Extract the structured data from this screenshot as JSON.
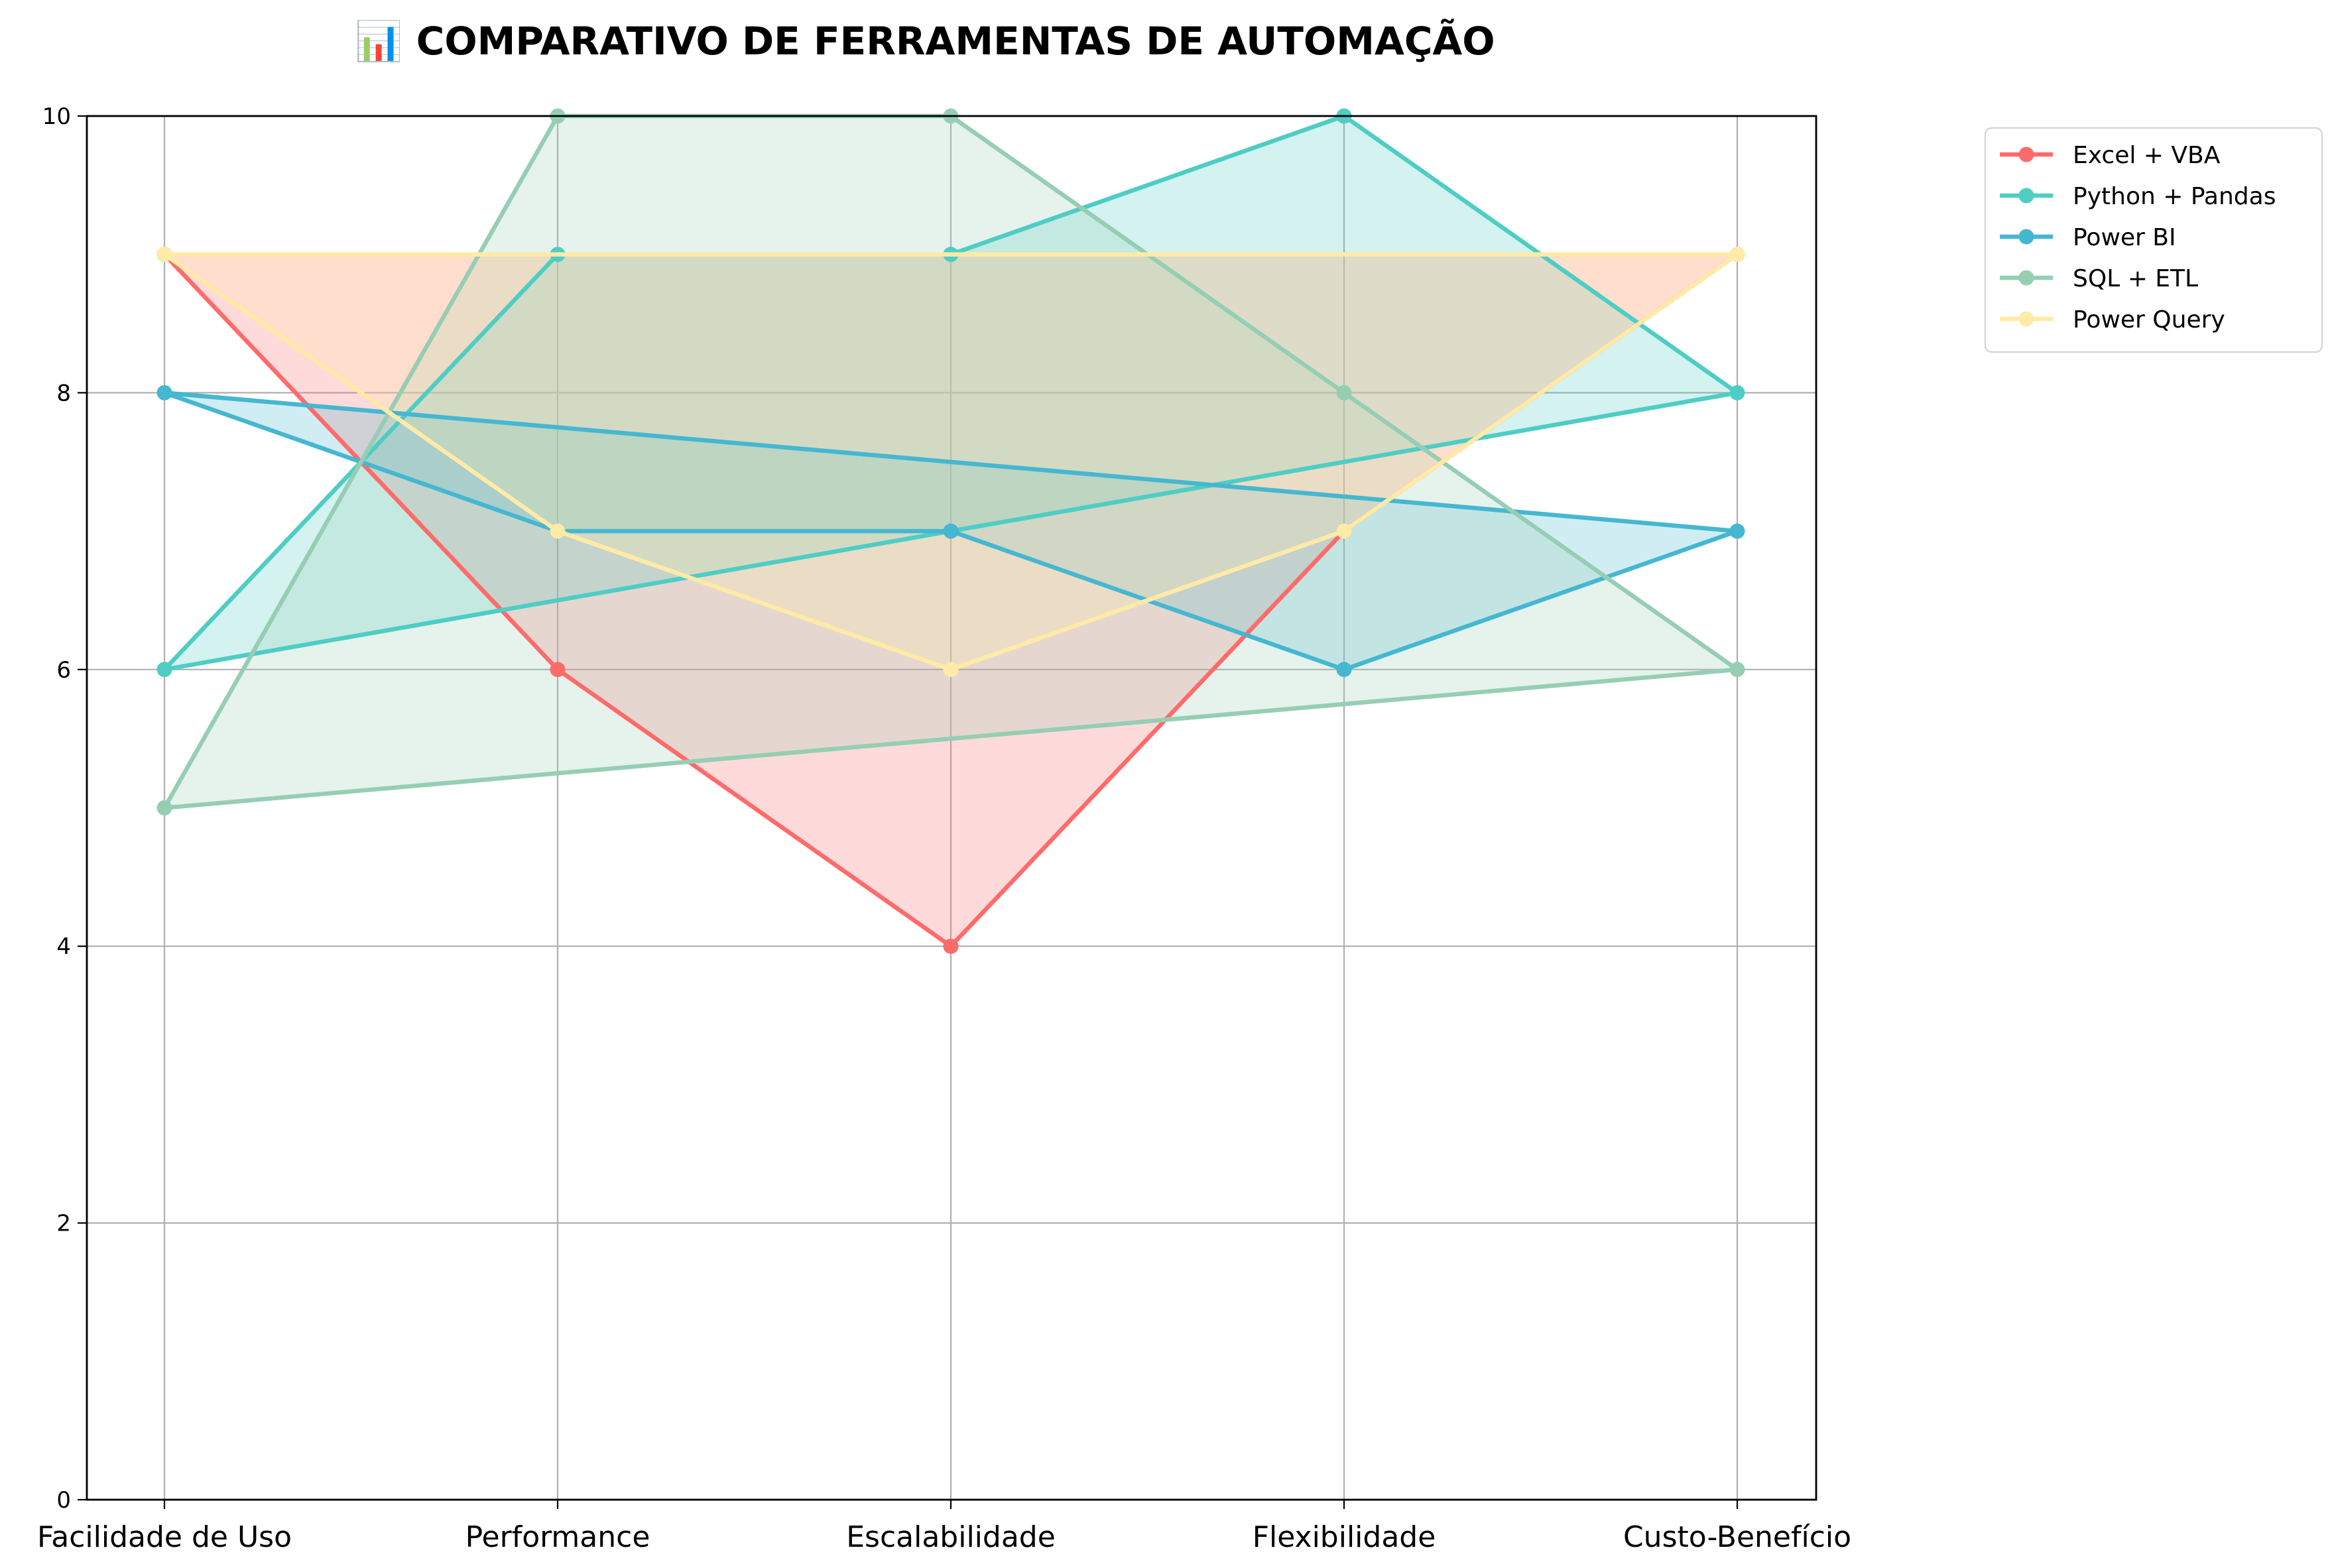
{
  "chart_data": {
    "type": "line",
    "title": "📊 COMPARATIVO DE FERRAMENTAS DE AUTOMAÇÃO",
    "categories": [
      "Facilidade de Uso",
      "Performance",
      "Escalabilidade",
      "Flexibilidade",
      "Custo-Benefício"
    ],
    "ylim": [
      0,
      10
    ],
    "yticks": [
      "0",
      "2",
      "4",
      "6",
      "8",
      "10"
    ],
    "grid": true,
    "legend_position": "outside-top-right",
    "closed_polygon_fill": true,
    "series": [
      {
        "name": "Excel + VBA",
        "color": "#FF6B6B",
        "values": [
          9,
          6,
          4,
          7,
          9
        ]
      },
      {
        "name": "Python + Pandas",
        "color": "#4ECDC4",
        "values": [
          6,
          9,
          9,
          10,
          8
        ]
      },
      {
        "name": "Power BI",
        "color": "#45B7D1",
        "values": [
          8,
          7,
          7,
          6,
          7
        ]
      },
      {
        "name": "SQL + ETL",
        "color": "#96CEB4",
        "values": [
          5,
          10,
          10,
          8,
          6
        ]
      },
      {
        "name": "Power Query",
        "color": "#FFEAA7",
        "values": [
          9,
          7,
          6,
          7,
          9
        ]
      }
    ]
  }
}
